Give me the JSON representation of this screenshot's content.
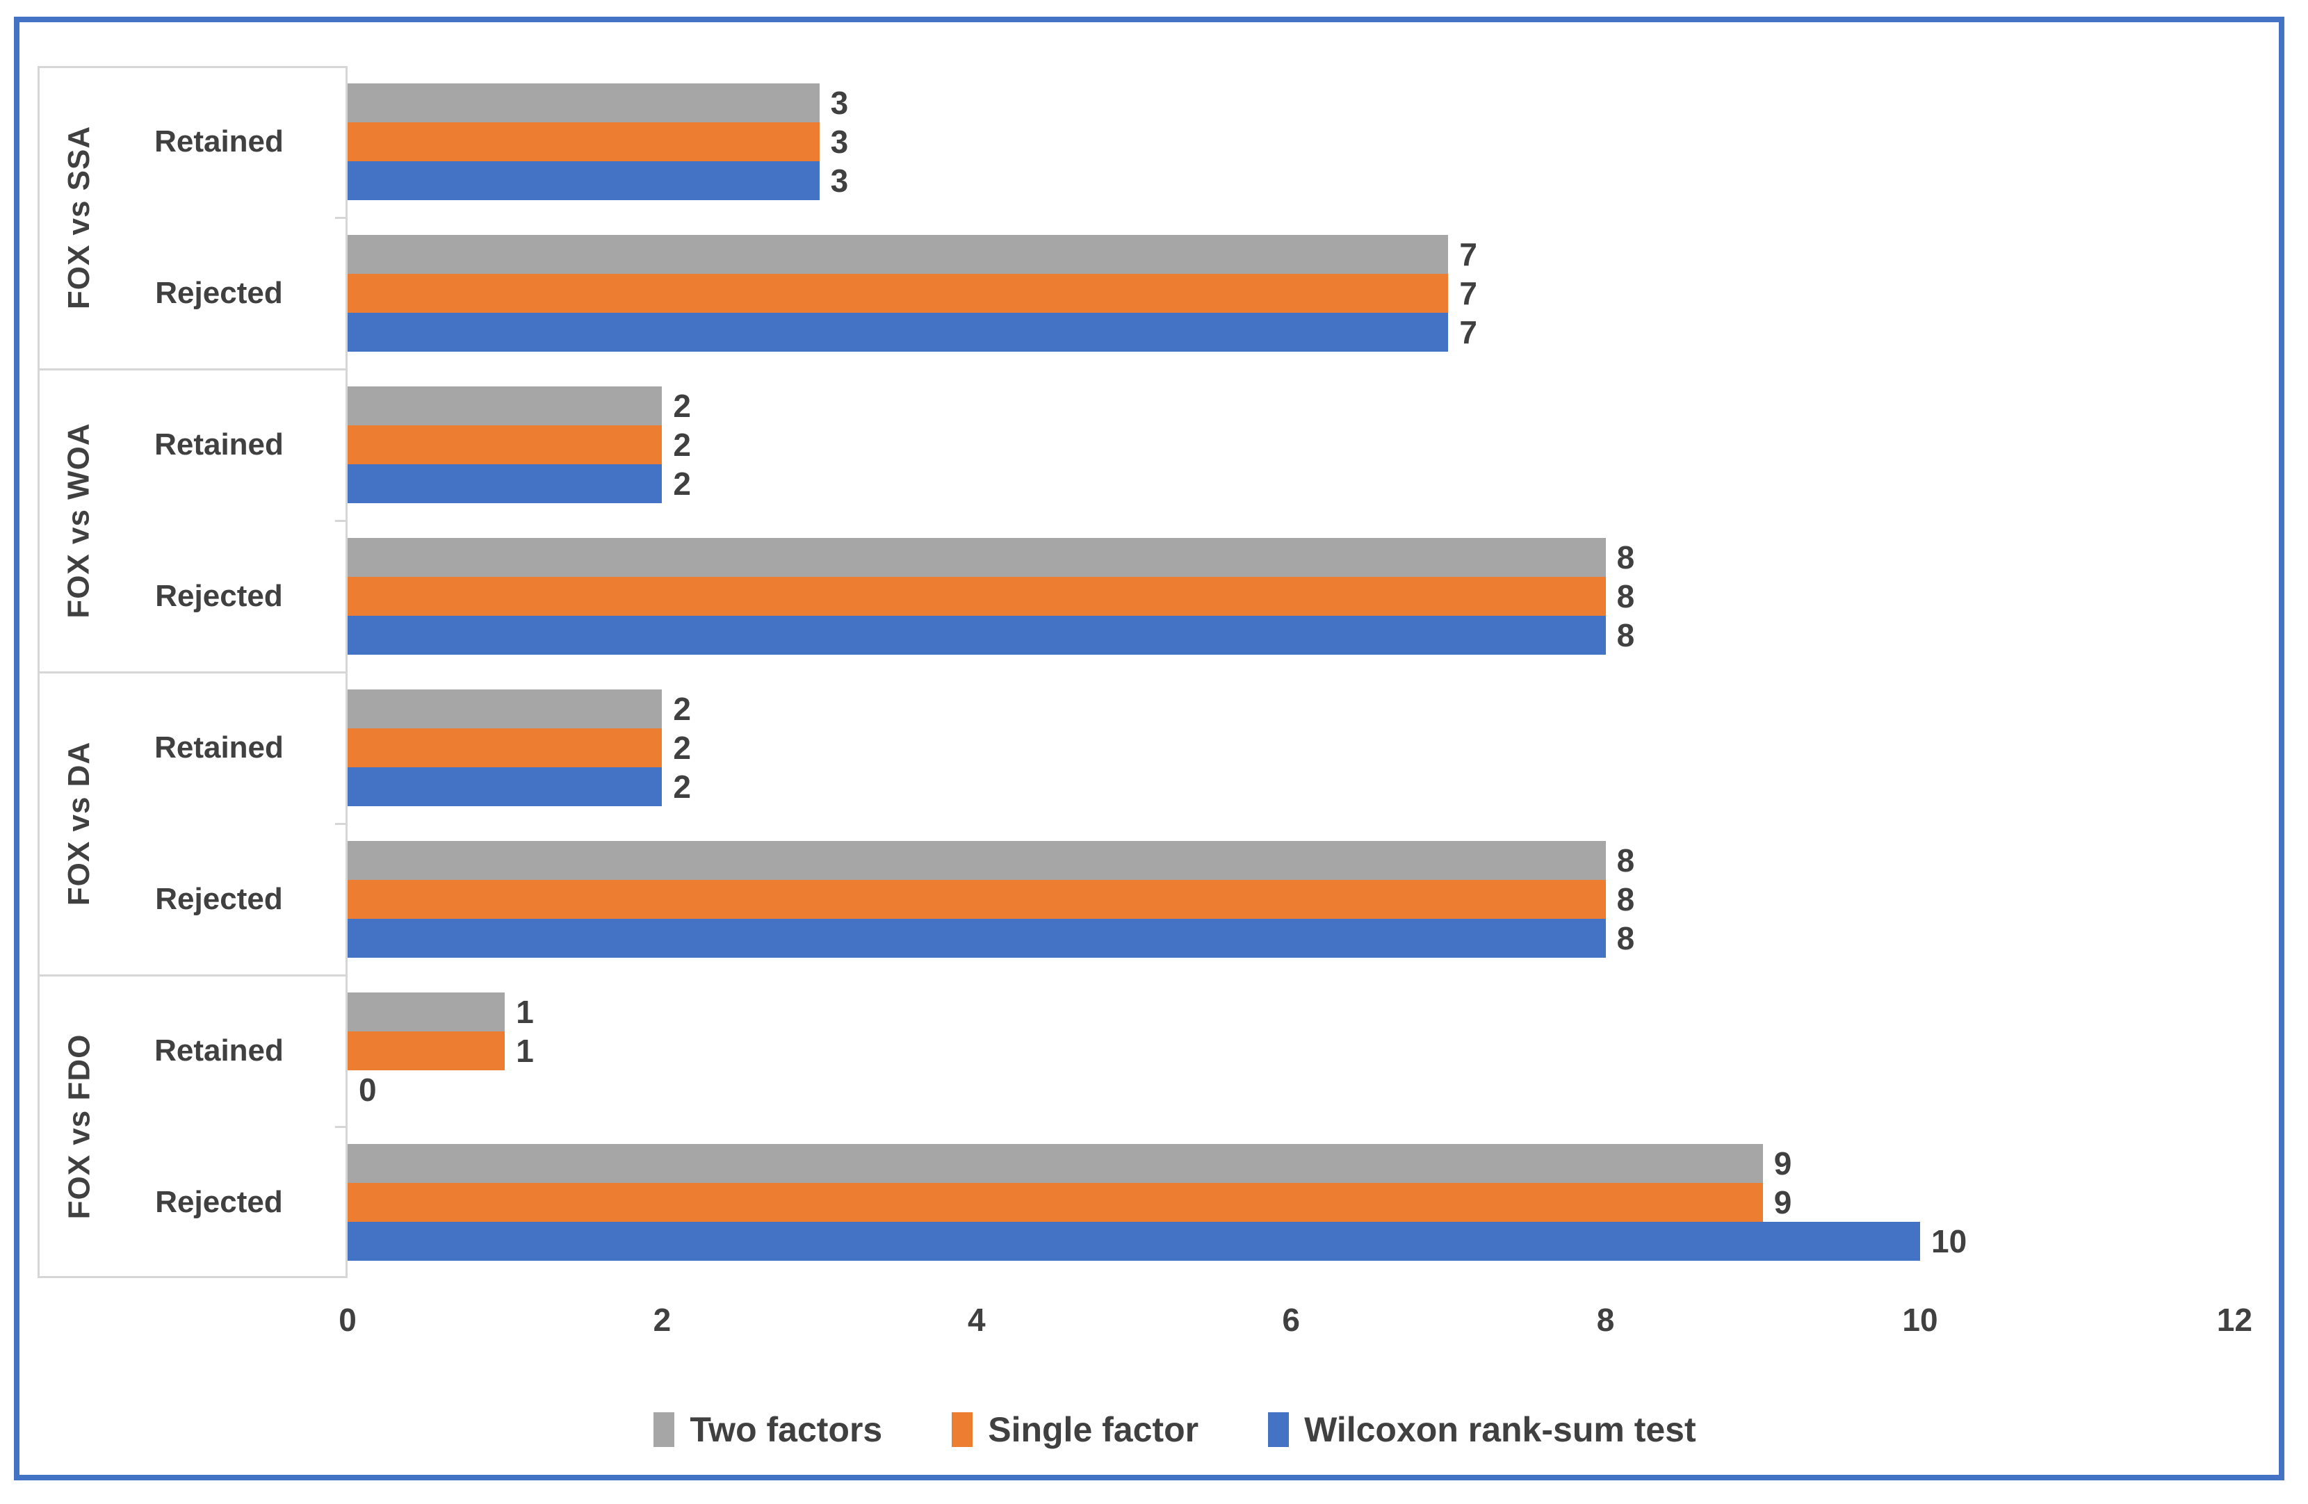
{
  "figure": {
    "border_color": "#4472C4",
    "background": "#FFFFFF",
    "text_color": "#404040",
    "axis_line_color": "#D6D6D6"
  },
  "chart_data": {
    "type": "bar",
    "orientation": "horizontal",
    "title": "",
    "group_labels": [
      "FOX vs SSA",
      "FOX vs WOA",
      "FOX vs DA",
      "FOX vs FDO"
    ],
    "category_labels_per_group": [
      "Retained",
      "Rejected"
    ],
    "categories": [
      "FOX vs SSA / Retained",
      "FOX vs SSA / Rejected",
      "FOX vs WOA / Retained",
      "FOX vs WOA / Rejected",
      "FOX vs DA / Retained",
      "FOX vs DA / Rejected",
      "FOX vs FDO / Retained",
      "FOX vs FDO / Rejected"
    ],
    "series": [
      {
        "name": "Two factors",
        "color": "#A6A6A6",
        "values": [
          3,
          7,
          2,
          8,
          2,
          8,
          1,
          9
        ]
      },
      {
        "name": "Single factor",
        "color": "#ED7D31",
        "values": [
          3,
          7,
          2,
          8,
          2,
          8,
          1,
          9
        ]
      },
      {
        "name": "Wilcoxon rank-sum test",
        "color": "#4472C4",
        "values": [
          3,
          7,
          2,
          8,
          2,
          8,
          0,
          10
        ]
      }
    ],
    "bar_order_top_to_bottom": [
      "Two factors",
      "Single factor",
      "Wilcoxon rank-sum test"
    ],
    "x_ticks": [
      0,
      2,
      4,
      6,
      8,
      10,
      12
    ],
    "xlim": [
      0,
      12
    ],
    "data_labels_shown": true,
    "gridlines": false,
    "legend_position": "bottom"
  }
}
